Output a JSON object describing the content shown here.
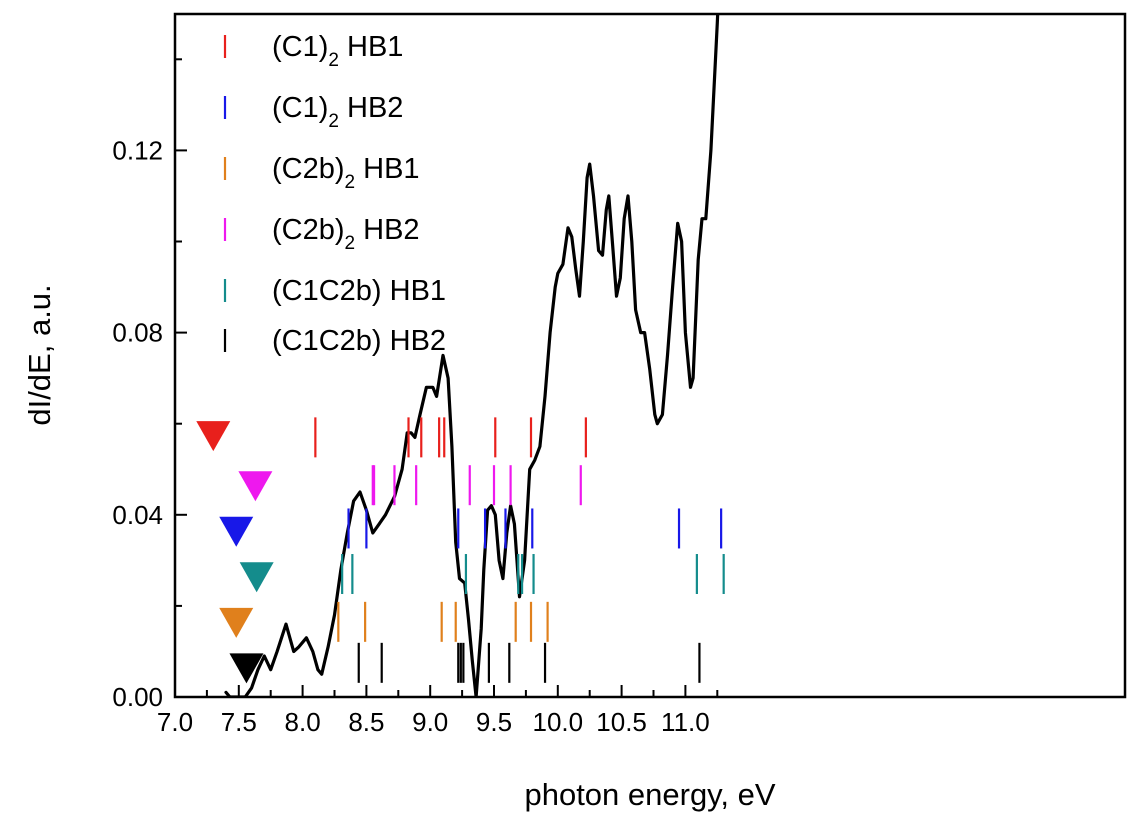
{
  "chart_data": {
    "type": "line",
    "title": "",
    "xlabel": "photon energy, eV",
    "ylabel": "dI/dE, a.u.",
    "xlim": [
      7.0,
      11.3
    ],
    "ylim": [
      0.0,
      0.15
    ],
    "x_ticks": [
      7.0,
      7.5,
      8.0,
      8.5,
      9.0,
      9.5,
      10.0,
      10.5,
      11.0
    ],
    "x_tick_labels": [
      "7.0",
      "7.5",
      "8.0",
      "8.5",
      "9.0",
      "9.5",
      "10.0",
      "10.5",
      "11.0"
    ],
    "y_ticks": [
      0.0,
      0.04,
      0.08,
      0.12
    ],
    "y_tick_labels": [
      "0.00",
      "0.04",
      "0.08",
      "0.12"
    ],
    "grid": false,
    "legend_placement": "top-left",
    "spectrum": {
      "color": "#000000",
      "points": [
        [
          7.4,
          0.001
        ],
        [
          7.43,
          0.0
        ],
        [
          7.55,
          0.0
        ],
        [
          7.6,
          0.002
        ],
        [
          7.65,
          0.006
        ],
        [
          7.7,
          0.009
        ],
        [
          7.75,
          0.006
        ],
        [
          7.8,
          0.01
        ],
        [
          7.87,
          0.016
        ],
        [
          7.93,
          0.01
        ],
        [
          7.97,
          0.011
        ],
        [
          8.03,
          0.013
        ],
        [
          8.08,
          0.01
        ],
        [
          8.12,
          0.006
        ],
        [
          8.15,
          0.005
        ],
        [
          8.2,
          0.011
        ],
        [
          8.25,
          0.018
        ],
        [
          8.3,
          0.028
        ],
        [
          8.35,
          0.036
        ],
        [
          8.4,
          0.043
        ],
        [
          8.45,
          0.045
        ],
        [
          8.5,
          0.041
        ],
        [
          8.55,
          0.036
        ],
        [
          8.6,
          0.038
        ],
        [
          8.65,
          0.04
        ],
        [
          8.72,
          0.044
        ],
        [
          8.78,
          0.05
        ],
        [
          8.82,
          0.058
        ],
        [
          8.85,
          0.058
        ],
        [
          8.88,
          0.057
        ],
        [
          8.92,
          0.062
        ],
        [
          8.97,
          0.068
        ],
        [
          9.02,
          0.068
        ],
        [
          9.05,
          0.066
        ],
        [
          9.1,
          0.075
        ],
        [
          9.14,
          0.07
        ],
        [
          9.17,
          0.055
        ],
        [
          9.2,
          0.034
        ],
        [
          9.23,
          0.026
        ],
        [
          9.27,
          0.025
        ],
        [
          9.3,
          0.017
        ],
        [
          9.33,
          0.008
        ],
        [
          9.36,
          0.0
        ],
        [
          9.4,
          0.015
        ],
        [
          9.42,
          0.028
        ],
        [
          9.45,
          0.041
        ],
        [
          9.48,
          0.042
        ],
        [
          9.51,
          0.04
        ],
        [
          9.54,
          0.03
        ],
        [
          9.57,
          0.026
        ],
        [
          9.6,
          0.036
        ],
        [
          9.63,
          0.042
        ],
        [
          9.66,
          0.038
        ],
        [
          9.7,
          0.022
        ],
        [
          9.74,
          0.03
        ],
        [
          9.78,
          0.05
        ],
        [
          9.82,
          0.052
        ],
        [
          9.86,
          0.055
        ],
        [
          9.9,
          0.066
        ],
        [
          9.94,
          0.08
        ],
        [
          9.98,
          0.09
        ],
        [
          10.0,
          0.093
        ],
        [
          10.04,
          0.095
        ],
        [
          10.08,
          0.103
        ],
        [
          10.11,
          0.101
        ],
        [
          10.14,
          0.094
        ],
        [
          10.17,
          0.088
        ],
        [
          10.2,
          0.1
        ],
        [
          10.23,
          0.114
        ],
        [
          10.25,
          0.117
        ],
        [
          10.28,
          0.11
        ],
        [
          10.32,
          0.098
        ],
        [
          10.35,
          0.097
        ],
        [
          10.38,
          0.107
        ],
        [
          10.4,
          0.11
        ],
        [
          10.43,
          0.099
        ],
        [
          10.46,
          0.088
        ],
        [
          10.49,
          0.092
        ],
        [
          10.52,
          0.105
        ],
        [
          10.55,
          0.11
        ],
        [
          10.58,
          0.1
        ],
        [
          10.61,
          0.085
        ],
        [
          10.65,
          0.08
        ],
        [
          10.68,
          0.08
        ],
        [
          10.72,
          0.072
        ],
        [
          10.76,
          0.062
        ],
        [
          10.78,
          0.06
        ],
        [
          10.82,
          0.062
        ],
        [
          10.86,
          0.075
        ],
        [
          10.9,
          0.09
        ],
        [
          10.94,
          0.104
        ],
        [
          10.97,
          0.1
        ],
        [
          11.0,
          0.08
        ],
        [
          11.04,
          0.068
        ],
        [
          11.06,
          0.07
        ],
        [
          11.1,
          0.096
        ],
        [
          11.13,
          0.105
        ],
        [
          11.16,
          0.105
        ],
        [
          11.2,
          0.12
        ],
        [
          11.25,
          0.148
        ],
        [
          11.3,
          0.18
        ]
      ]
    },
    "series": [
      {
        "name": "HB1",
        "label_prefix": "(C1)",
        "label_subscript": "2",
        "label_suffix": " HB1",
        "color": "#e8201c",
        "marker_x": 7.3,
        "marker_y": 0.0575,
        "tick_y": 0.057,
        "x": [
          8.1,
          8.83,
          8.93,
          9.07,
          9.11,
          9.51,
          9.79,
          10.22
        ]
      },
      {
        "name": "HB2",
        "label_prefix": "(C1)",
        "label_subscript": "2",
        "label_suffix": " HB2",
        "color": "#1818e8",
        "marker_x": 7.48,
        "marker_y": 0.0365,
        "tick_y": 0.037,
        "x": [
          8.36,
          8.5,
          9.22,
          9.43,
          9.59,
          9.8,
          10.95,
          11.28
        ]
      },
      {
        "name": "HB1",
        "label_prefix": "(C2b)",
        "label_subscript": "2",
        "label_suffix": " HB1",
        "color": "#e0801c",
        "marker_x": 7.48,
        "marker_y": 0.0165,
        "tick_y": 0.0165,
        "x": [
          8.28,
          8.49,
          9.09,
          9.2,
          9.67,
          9.79,
          9.92
        ]
      },
      {
        "name": "HB2",
        "label_prefix": "(C2b)",
        "label_subscript": "2",
        "label_suffix": " HB2",
        "color": "#ee18ee",
        "marker_x": 7.63,
        "marker_y": 0.0465,
        "tick_y": 0.0465,
        "x": [
          8.55,
          8.56,
          8.72,
          8.89,
          9.31,
          9.5,
          9.63,
          10.18
        ]
      },
      {
        "name": "(C1C2b) HB1",
        "label_prefix": "(C1C2b) HB1",
        "label_subscript": "",
        "label_suffix": "",
        "color": "#148c8c",
        "marker_x": 7.64,
        "marker_y": 0.0265,
        "tick_y": 0.027,
        "x": [
          8.31,
          8.39,
          9.28,
          9.69,
          9.72,
          9.81,
          11.09,
          11.3
        ]
      },
      {
        "name": "(C1C2b) HB2",
        "label_prefix": "(C1C2b) HB2",
        "label_subscript": "",
        "label_suffix": "",
        "color": "#000000",
        "marker_x": 7.56,
        "marker_y": 0.0065,
        "tick_y": 0.0075,
        "x": [
          8.44,
          8.62,
          9.22,
          9.24,
          9.26,
          9.46,
          9.62,
          9.9,
          11.11
        ]
      }
    ]
  }
}
